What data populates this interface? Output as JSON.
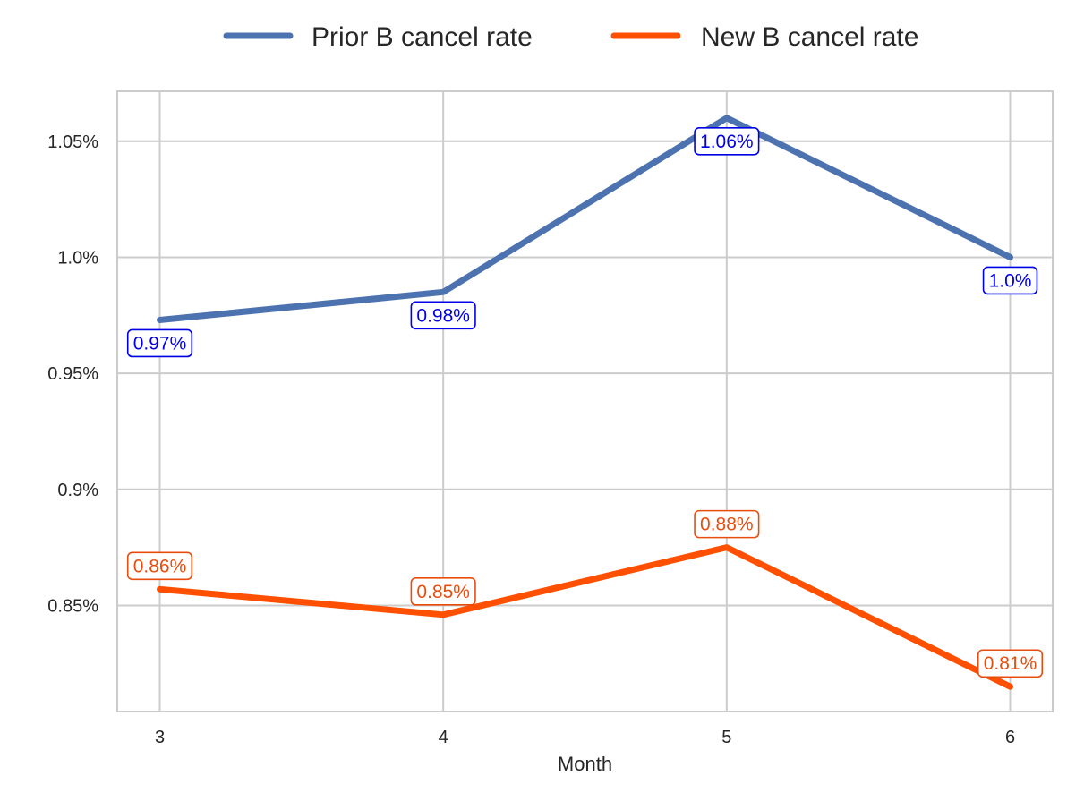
{
  "chart_data": {
    "type": "line",
    "title": "",
    "xlabel": "Month",
    "ylabel": "",
    "x": [
      3,
      4,
      5,
      6
    ],
    "x_tick_labels": [
      "3",
      "4",
      "5",
      "6"
    ],
    "xlim": [
      2.85,
      6.15
    ],
    "ylim": [
      0.8043,
      1.0715
    ],
    "y_ticks": [
      0.85,
      0.9,
      0.95,
      1.0,
      1.05
    ],
    "y_tick_labels": [
      "0.85%",
      "0.9%",
      "0.95%",
      "1.0%",
      "1.05%"
    ],
    "grid": true,
    "legend_position": "top-center",
    "series": [
      {
        "name": "Prior B cancel rate",
        "color": "#4c72b0",
        "label_color": "#0000e6",
        "label_position": "below",
        "values": [
          0.973,
          0.985,
          1.06,
          1.0
        ],
        "data_labels": [
          "0.97%",
          "0.98%",
          "1.06%",
          "1.0%"
        ]
      },
      {
        "name": "New B cancel rate",
        "color": "#ff4f00",
        "label_color": "#e84d0e",
        "label_position": "above",
        "values": [
          0.857,
          0.846,
          0.875,
          0.815
        ],
        "data_labels": [
          "0.86%",
          "0.85%",
          "0.88%",
          "0.81%"
        ]
      }
    ]
  }
}
